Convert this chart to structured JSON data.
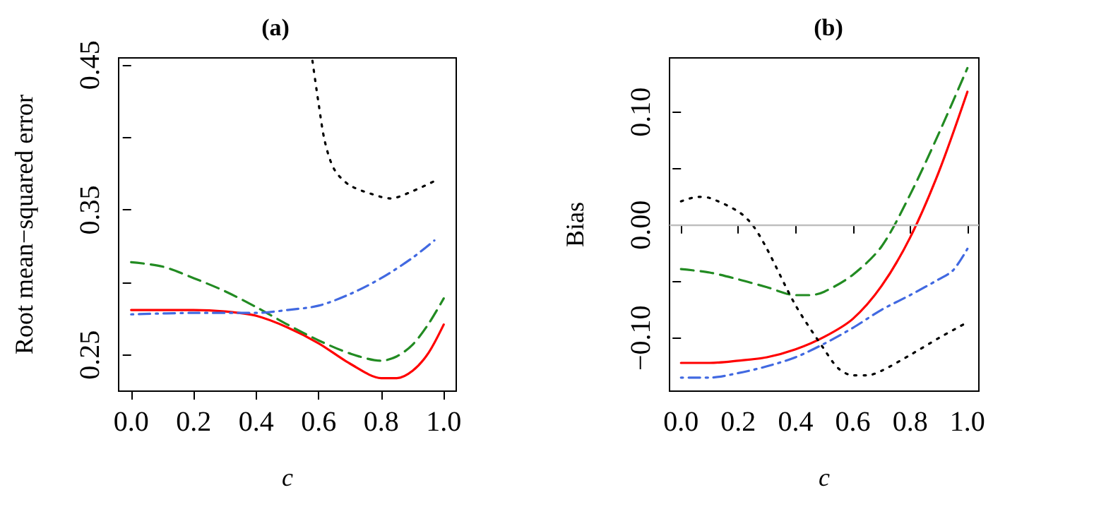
{
  "chart_data": [
    {
      "type": "line",
      "title": "(a)",
      "xlabel": "c",
      "ylabel": "Root mean−squared error",
      "xlim": [
        -0.04,
        1.04
      ],
      "ylim": [
        0.225,
        0.455
      ],
      "xticks": [
        {
          "value": 0,
          "label": "0.0"
        },
        {
          "value": 0.2,
          "label": "0.2"
        },
        {
          "value": 0.4,
          "label": "0.4"
        },
        {
          "value": 0.6,
          "label": "0.6"
        },
        {
          "value": 0.8,
          "label": "0.8"
        },
        {
          "value": 1,
          "label": "1.0"
        }
      ],
      "yticks": [
        0.25,
        {
          "value": 0.3,
          "label": null
        },
        0.35,
        {
          "value": 0.4,
          "label": null
        },
        0.45
      ],
      "grid": false,
      "marker": "none",
      "series": [
        {
          "color": "#ff0000",
          "line_style": "solid",
          "x": [
            0,
            0.1,
            0.2,
            0.3,
            0.4,
            0.5,
            0.6,
            0.7,
            0.8,
            0.85,
            0.9,
            0.95,
            1
          ],
          "values": [
            0.281,
            0.281,
            0.281,
            0.28,
            0.277,
            0.269,
            0.258,
            0.244,
            0.234,
            0.234,
            0.239,
            0.251,
            0.271
          ]
        },
        {
          "color": "#228b22",
          "line_style": "dashed",
          "x": [
            0,
            0.1,
            0.2,
            0.3,
            0.4,
            0.5,
            0.6,
            0.7,
            0.8,
            0.85,
            0.9,
            0.95,
            1
          ],
          "values": [
            0.314,
            0.311,
            0.303,
            0.294,
            0.283,
            0.271,
            0.26,
            0.251,
            0.246,
            0.249,
            0.257,
            0.271,
            0.289
          ]
        },
        {
          "color": "#4169e1",
          "line_style": "dashdot",
          "x": [
            0,
            0.2,
            0.4,
            0.5,
            0.6,
            0.7,
            0.8,
            0.9,
            0.97
          ],
          "values": [
            0.278,
            0.279,
            0.279,
            0.281,
            0.284,
            0.292,
            0.303,
            0.317,
            0.329
          ]
        },
        {
          "color": "#000000",
          "line_style": "dotted",
          "x": [
            0.58,
            0.6,
            0.62,
            0.65,
            0.7,
            0.8,
            0.83,
            0.9,
            0.98
          ],
          "values": [
            0.453,
            0.423,
            0.397,
            0.378,
            0.367,
            0.359,
            0.358,
            0.363,
            0.371
          ]
        }
      ]
    },
    {
      "type": "line",
      "title": "(b)",
      "xlabel": "c",
      "ylabel": "Bias",
      "xlim": [
        -0.04,
        1.04
      ],
      "ylim": [
        -0.147,
        0.148
      ],
      "xticks": [
        {
          "value": 0,
          "label": "0.0"
        },
        {
          "value": 0.2,
          "label": "0.2"
        },
        {
          "value": 0.4,
          "label": "0.4"
        },
        {
          "value": 0.6,
          "label": "0.6"
        },
        {
          "value": 0.8,
          "label": "0.8"
        },
        {
          "value": 1,
          "label": "1.0"
        }
      ],
      "yticks": [
        {
          "value": -0.1,
          "label": "−0.10"
        },
        {
          "value": -0.05,
          "label": null
        },
        {
          "value": 0,
          "label": "0.00"
        },
        {
          "value": 0.05,
          "label": null
        },
        {
          "value": 0.1,
          "label": "0.10"
        }
      ],
      "grid": false,
      "marker": "none",
      "ref_lines": [
        {
          "axis": "y",
          "value": 0,
          "color": "#bebebe",
          "line_style": "solid"
        }
      ],
      "series": [
        {
          "color": "#ff0000",
          "line_style": "solid",
          "x": [
            0,
            0.1,
            0.2,
            0.3,
            0.4,
            0.5,
            0.6,
            0.7,
            0.8,
            0.9,
            1
          ],
          "values": [
            -0.122,
            -0.122,
            -0.12,
            -0.117,
            -0.11,
            -0.099,
            -0.083,
            -0.054,
            -0.011,
            0.047,
            0.118
          ]
        },
        {
          "color": "#228b22",
          "line_style": "dashed",
          "x": [
            0,
            0.1,
            0.2,
            0.3,
            0.4,
            0.45,
            0.5,
            0.6,
            0.7,
            0.8,
            0.9,
            1
          ],
          "values": [
            -0.039,
            -0.042,
            -0.048,
            -0.055,
            -0.062,
            -0.062,
            -0.059,
            -0.044,
            -0.019,
            0.027,
            0.081,
            0.139
          ]
        },
        {
          "color": "#4169e1",
          "line_style": "dashdot",
          "x": [
            0,
            0.1,
            0.2,
            0.3,
            0.4,
            0.5,
            0.6,
            0.7,
            0.8,
            0.9,
            0.95,
            1
          ],
          "values": [
            -0.135,
            -0.135,
            -0.131,
            -0.125,
            -0.117,
            -0.105,
            -0.091,
            -0.075,
            -0.062,
            -0.048,
            -0.04,
            -0.021
          ]
        },
        {
          "color": "#000000",
          "line_style": "dotted",
          "x": [
            0,
            0.06,
            0.1,
            0.2,
            0.25,
            0.3,
            0.4,
            0.5,
            0.55,
            0.6,
            0.65,
            0.7,
            0.8,
            0.9,
            1
          ],
          "values": [
            0.021,
            0.025,
            0.024,
            0.012,
            0,
            -0.021,
            -0.071,
            -0.11,
            -0.127,
            -0.133,
            -0.133,
            -0.129,
            -0.115,
            -0.1,
            -0.086
          ]
        }
      ]
    }
  ]
}
